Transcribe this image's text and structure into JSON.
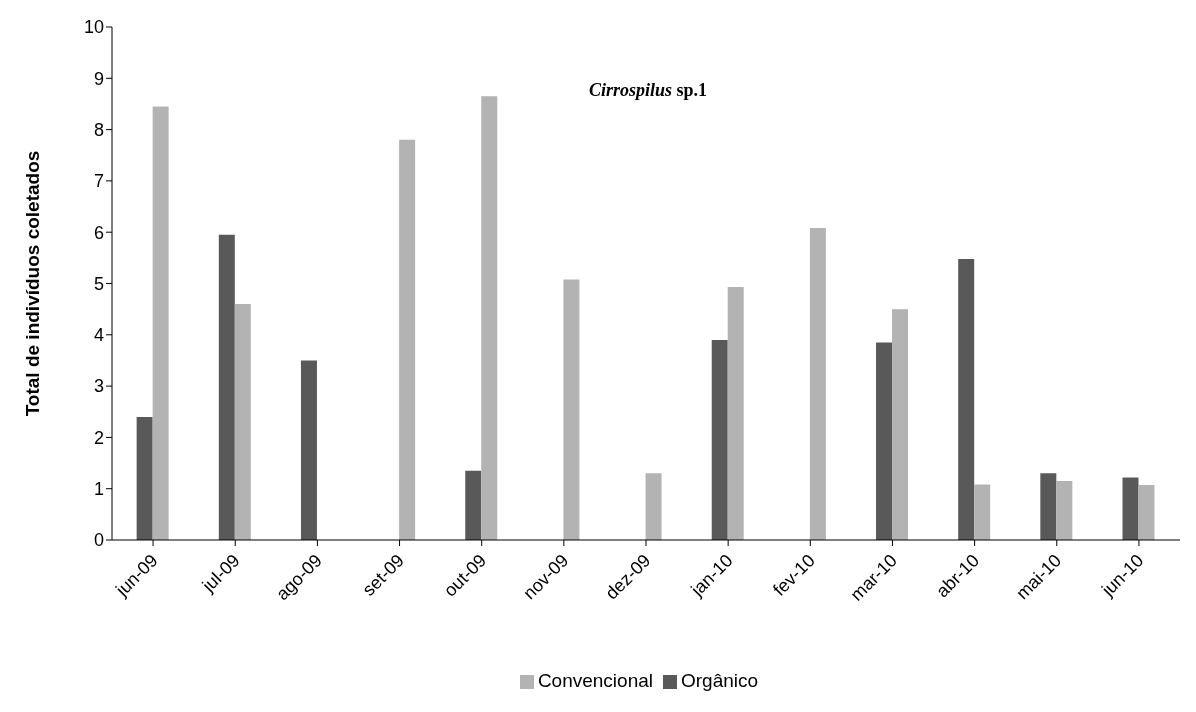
{
  "chart_data": {
    "type": "bar",
    "title": "Cirrospilus sp.1",
    "ylabel": "Total de indivíduos coletados",
    "categories": [
      "jun-09",
      "jul-09",
      "ago-09",
      "set-09",
      "out-09",
      "nov-09",
      "dez-09",
      "jan-10",
      "fev-10",
      "mar-10",
      "abr-10",
      "mai-10",
      "jun-10"
    ],
    "series": [
      {
        "name": "Orgânico",
        "color": "#595959",
        "values": [
          2.4,
          5.95,
          3.5,
          0,
          1.35,
          0,
          0,
          3.9,
          0,
          3.85,
          5.48,
          1.3,
          1.22
        ]
      },
      {
        "name": "Convencional",
        "color": "#b3b3b3",
        "values": [
          8.45,
          4.6,
          0,
          7.8,
          8.65,
          5.08,
          1.3,
          4.93,
          6.08,
          4.5,
          1.08,
          1.15,
          1.07
        ]
      }
    ],
    "ylim": [
      0,
      10
    ],
    "yticks": [
      0,
      1,
      2,
      3,
      4,
      5,
      6,
      7,
      8,
      9,
      10
    ],
    "grid": false,
    "legend": "bottom"
  }
}
